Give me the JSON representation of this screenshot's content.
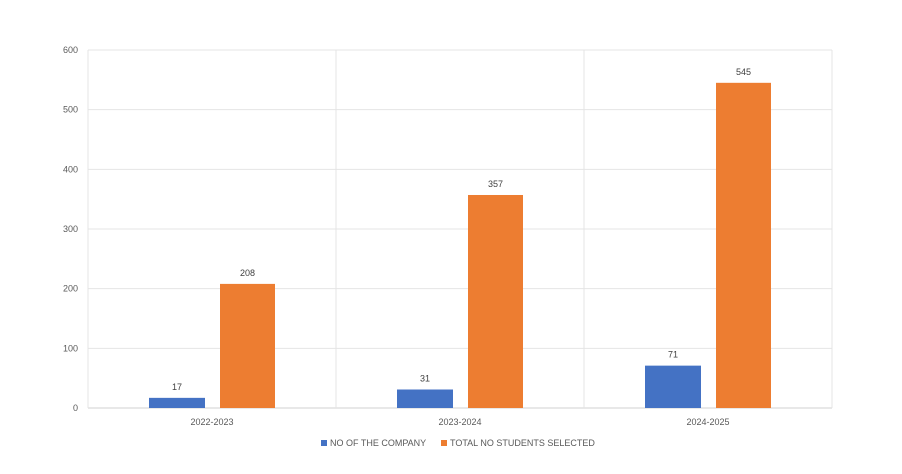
{
  "chart_data": {
    "type": "bar",
    "title": "",
    "xlabel": "",
    "ylabel": "",
    "categories": [
      "2022-2023",
      "2023-2024",
      "2024-2025"
    ],
    "series": [
      {
        "name": "NO OF THE COMPANY",
        "values": [
          17,
          31,
          71
        ],
        "color": "#4472C4"
      },
      {
        "name": "TOTAL NO STUDENTS SELECTED",
        "values": [
          208,
          357,
          545
        ],
        "color": "#ED7D31"
      }
    ],
    "ylim": [
      0,
      600
    ],
    "yticks": [
      0,
      100,
      200,
      300,
      400,
      500,
      600
    ],
    "grid": true,
    "data_labels": true,
    "legend": "bottom"
  }
}
